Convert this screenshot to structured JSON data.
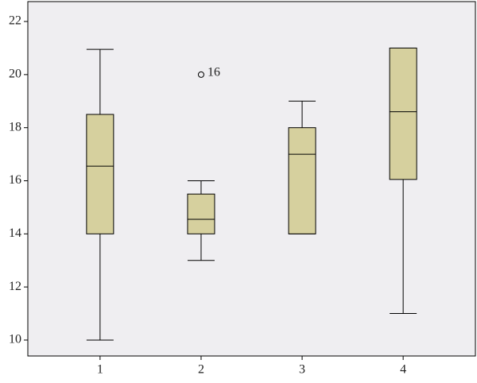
{
  "chart_data": {
    "type": "box",
    "categories": [
      "1",
      "2",
      "3",
      "4"
    ],
    "boxes": [
      {
        "min": 10,
        "q1": 14,
        "median": 16.55,
        "q3": 18.5,
        "max": 20.95
      },
      {
        "min": 13,
        "q1": 14,
        "median": 14.55,
        "q3": 15.5,
        "max": 16
      },
      {
        "min": 14,
        "q1": 14,
        "median": 17,
        "q3": 18,
        "max": 19
      },
      {
        "min": 11,
        "q1": 16.05,
        "median": 18.6,
        "q3": 21,
        "max": 21
      }
    ],
    "outliers": [
      [],
      [
        {
          "value": 20,
          "label": "16"
        }
      ],
      [],
      []
    ],
    "color": "#d6d09e",
    "ylim": [
      9.4,
      22.75
    ],
    "yticks": [
      10,
      12,
      14,
      16,
      18,
      20,
      22
    ]
  }
}
